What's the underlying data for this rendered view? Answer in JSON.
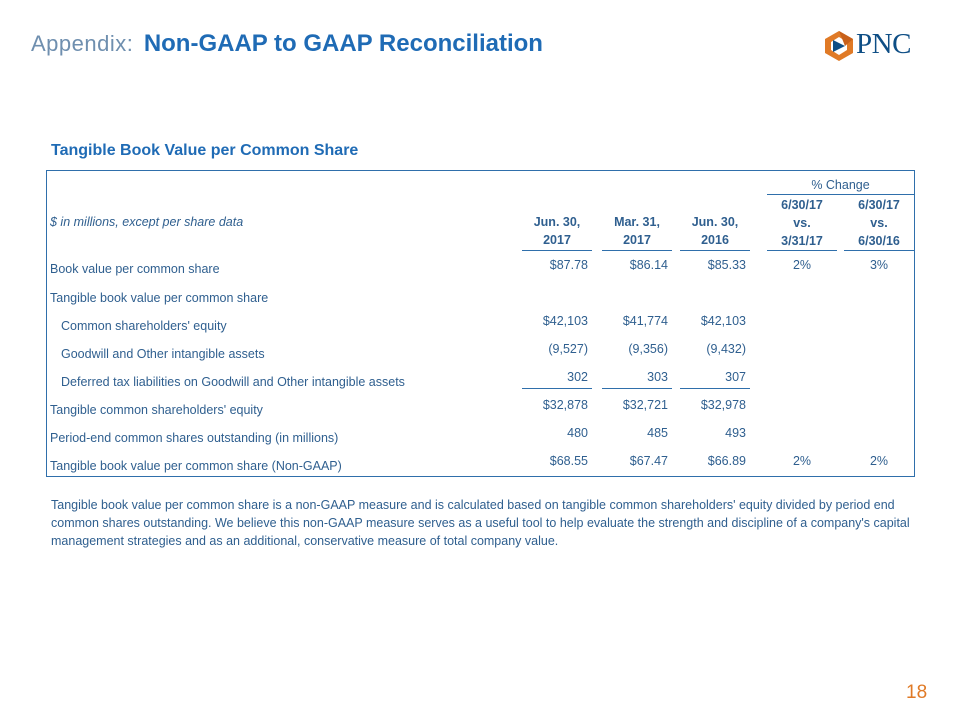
{
  "header": {
    "prefix": "Appendix:",
    "title": "Non-GAAP to GAAP Reconciliation",
    "logo_text": "PNC"
  },
  "section_title": "Tangible Book Value per Common Share",
  "table": {
    "units_label": "$ in millions, except per share data",
    "pct_change_label": "% Change",
    "columns": [
      {
        "line1": "Jun. 30,",
        "line2": "2017"
      },
      {
        "line1": "Mar. 31,",
        "line2": "2017"
      },
      {
        "line1": "Jun. 30,",
        "line2": "2016"
      },
      {
        "line1": "6/30/17",
        "line2": "vs.",
        "line3": "3/31/17"
      },
      {
        "line1": "6/30/17",
        "line2": "vs.",
        "line3": "6/30/16"
      }
    ],
    "rows": [
      {
        "label": "Book value per common share",
        "v1": "$87.78",
        "v2": "$86.14",
        "v3": "$85.33",
        "p1": "2%",
        "p2": "3%"
      },
      {
        "label": "Tangible book value per common share",
        "v1": "",
        "v2": "",
        "v3": "",
        "p1": "",
        "p2": ""
      },
      {
        "label": "Common shareholders' equity",
        "v1": "$42,103",
        "v2": "$41,774",
        "v3": "$42,103",
        "p1": "",
        "p2": ""
      },
      {
        "label": "Goodwill and Other intangible assets",
        "v1": "(9,527)",
        "v2": "(9,356)",
        "v3": "(9,432)",
        "p1": "",
        "p2": ""
      },
      {
        "label": "Deferred tax liabilities on Goodwill and Other intangible assets",
        "v1": "302",
        "v2": "303",
        "v3": "307",
        "p1": "",
        "p2": ""
      },
      {
        "label": "Tangible common shareholders' equity",
        "v1": "$32,878",
        "v2": "$32,721",
        "v3": "$32,978",
        "p1": "",
        "p2": ""
      },
      {
        "label": "Period-end common shares outstanding (in millions)",
        "v1": "480",
        "v2": "485",
        "v3": "493",
        "p1": "",
        "p2": ""
      },
      {
        "label": "Tangible book value per common share (Non-GAAP)",
        "v1": "$68.55",
        "v2": "$67.47",
        "v3": "$66.89",
        "p1": "2%",
        "p2": "2%"
      }
    ]
  },
  "footnote": "Tangible book value per common share is a non-GAAP measure and is calculated based on tangible common shareholders' equity divided by period end common shares outstanding. We believe this non-GAAP measure serves as a useful tool to help evaluate the strength and discipline of a company's capital management strategies and as an additional, conservative measure of total company value.",
  "page_number": "18",
  "colors": {
    "brand_blue": "#1f6bb5",
    "brand_orange": "#e07a26",
    "text_blue": "#2f5f8f"
  }
}
